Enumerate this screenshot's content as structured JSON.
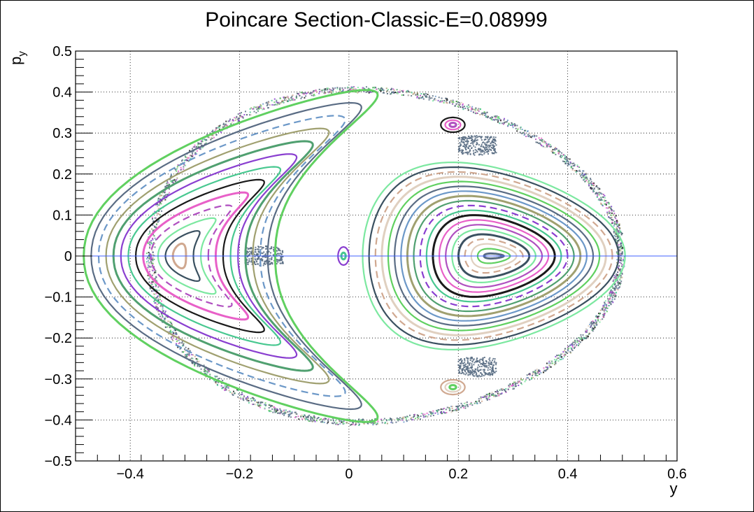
{
  "chart_data": {
    "type": "scatter",
    "title": "Poincare Section-Classic-E=0.08999",
    "xlabel": "y",
    "ylabel": "p",
    "ylabel_subscript": "y",
    "xlim": [
      -0.5,
      0.6
    ],
    "ylim": [
      -0.5,
      0.5
    ],
    "grid": true,
    "x_ticks": [
      -0.4,
      -0.2,
      0,
      0.2,
      0.4,
      0.6
    ],
    "x_tick_labels": [
      "−0.4",
      "−0.2",
      "0",
      "0.2",
      "0.4",
      "0.6"
    ],
    "y_ticks": [
      0.5,
      0.4,
      0.3,
      0.2,
      0.1,
      0,
      -0.1,
      -0.2,
      -0.3,
      -0.4,
      -0.5
    ],
    "y_tick_labels": [
      "0.5",
      "0.4",
      "0.3",
      "0.2",
      "0.1",
      "0",
      "−0.1",
      "−0.2",
      "−0.3",
      "−0.4",
      "−0.5"
    ],
    "boundary": {
      "y_min": -0.37,
      "y_max": 0.505,
      "py_max": 0.41
    },
    "saddle_points": [
      {
        "y": -0.155,
        "py": 0
      },
      {
        "y": 0.235,
        "py": 0.27
      },
      {
        "y": 0.235,
        "py": -0.27
      }
    ],
    "island_families": [
      {
        "name": "crescent",
        "center_y": -0.31,
        "center_py": 0,
        "count": 13,
        "inner_rx": 0.012,
        "outer_rx": 0.175,
        "inner_ry": 0.03,
        "outer_ry": 0.405
      },
      {
        "name": "central",
        "center_y": 0.265,
        "center_py": 0,
        "count": 20,
        "inner_rx": 0.018,
        "outer_rx": 0.24,
        "inner_ry": 0.006,
        "outer_ry": 0.225
      },
      {
        "name": "small-top",
        "center_y": 0.19,
        "center_py": 0.32,
        "count": 3,
        "inner_rx": 0.006,
        "outer_rx": 0.022,
        "inner_ry": 0.005,
        "outer_ry": 0.018
      },
      {
        "name": "small-bottom",
        "center_y": 0.19,
        "center_py": -0.32,
        "count": 3,
        "inner_rx": 0.006,
        "outer_rx": 0.022,
        "inner_ry": 0.005,
        "outer_ry": 0.018
      },
      {
        "name": "small-left",
        "center_y": -0.01,
        "center_py": 0,
        "count": 2,
        "inner_rx": 0.004,
        "outer_rx": 0.01,
        "inner_ry": 0.008,
        "outer_ry": 0.022
      }
    ],
    "palette": [
      "#e860c8",
      "#8a3fd0",
      "#6c98c8",
      "#e0d0c0",
      "#7ce8a0",
      "#1a1a1a",
      "#50a070",
      "#5a6c84",
      "#d0a890",
      "#b050c0",
      "#48c890",
      "#a0a070",
      "#60d060",
      "#3a5060"
    ],
    "chaos_color": "#5a6e84",
    "zero_line_color": "#4060ff"
  }
}
